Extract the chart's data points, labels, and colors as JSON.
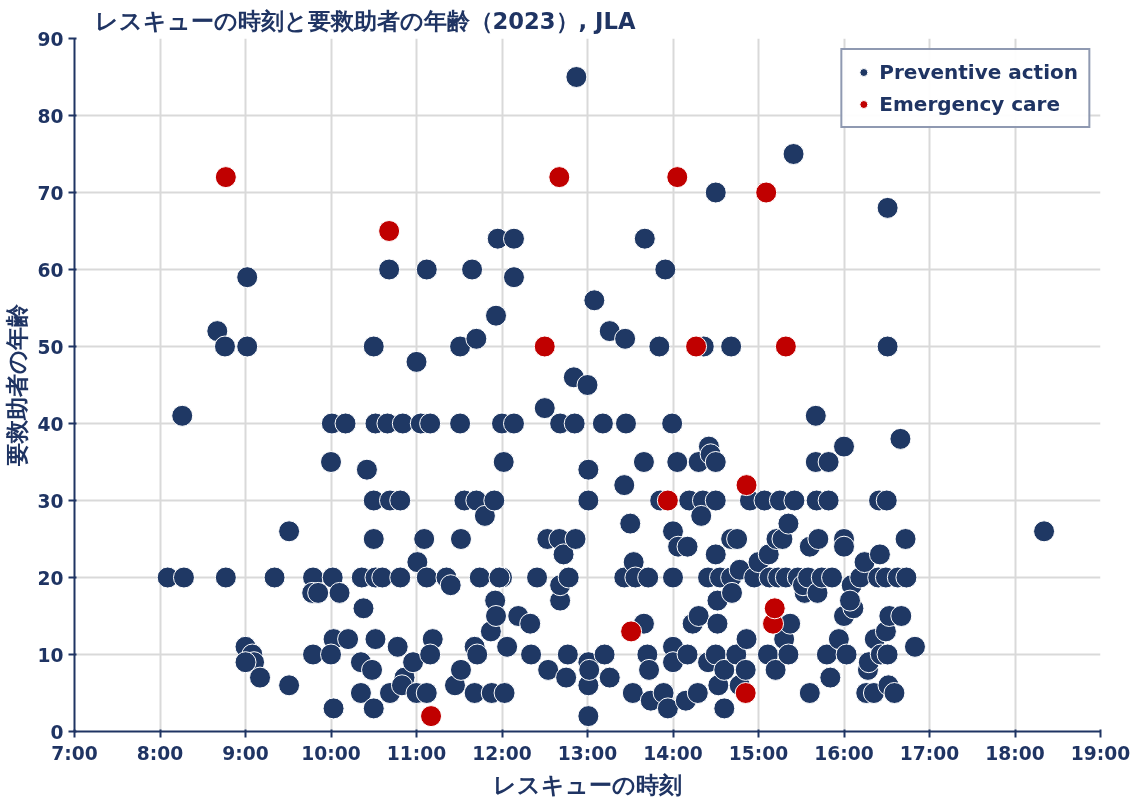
{
  "chart_data": {
    "type": "scatter",
    "title": "レスキューの時刻と要救助者の年齢（2023）, JLA",
    "xlabel": "レスキューの時刻",
    "ylabel": "要救助者の年齢",
    "xlim": [
      7,
      19
    ],
    "ylim": [
      0,
      90
    ],
    "xticks": [
      {
        "value": 7,
        "label": "7:00"
      },
      {
        "value": 8,
        "label": "8:00"
      },
      {
        "value": 9,
        "label": "9:00"
      },
      {
        "value": 10,
        "label": "10:00"
      },
      {
        "value": 11,
        "label": "11:00"
      },
      {
        "value": 12,
        "label": "12:00"
      },
      {
        "value": 13,
        "label": "13:00"
      },
      {
        "value": 14,
        "label": "14:00"
      },
      {
        "value": 15,
        "label": "15:00"
      },
      {
        "value": 16,
        "label": "16:00"
      },
      {
        "value": 17,
        "label": "17:00"
      },
      {
        "value": 18,
        "label": "18:00"
      },
      {
        "value": 19,
        "label": "19:00"
      }
    ],
    "yticks": [
      0,
      10,
      20,
      30,
      40,
      50,
      60,
      70,
      80,
      90
    ],
    "grid": true,
    "legend": "top right",
    "marker": "circle",
    "series": [
      {
        "name": "Preventive action",
        "color": "#1f3864",
        "x": [
          12.87,
          15.41,
          16.51,
          14.5,
          8.09,
          8.28,
          8.77,
          8.26,
          8.67,
          8.76,
          9.02,
          9.02,
          9.0,
          9.08,
          9.1,
          9.17,
          9.0,
          9.34,
          9.51,
          9.51,
          9.79,
          9.78,
          9.85,
          9.79,
          10.01,
          10.0,
          10.02,
          10.1,
          10.03,
          10.0,
          10.03,
          10.17,
          10.2,
          10.36,
          10.38,
          10.35,
          10.35,
          10.42,
          10.5,
          10.52,
          10.5,
          10.5,
          10.52,
          10.52,
          10.5,
          10.48,
          10.66,
          10.68,
          10.69,
          10.6,
          10.69,
          10.78,
          10.84,
          10.81,
          10.81,
          10.86,
          10.83,
          11.0,
          11.01,
          11.09,
          11.05,
          10.96,
          11.0,
          11.12,
          11.16,
          11.12,
          11.19,
          11.16,
          11.12,
          11.35,
          11.4,
          11.45,
          11.51,
          11.51,
          11.52,
          11.52,
          11.56,
          11.65,
          11.7,
          11.7,
          11.68,
          11.74,
          11.71,
          11.68,
          11.8,
          11.87,
          11.91,
          11.93,
          11.92,
          11.93,
          11.88,
          11.95,
          12.0,
          12.02,
          12.0,
          12.06,
          12.03,
          11.97,
          12.14,
          12.14,
          12.14,
          12.19,
          12.33,
          12.41,
          12.34,
          12.5,
          12.53,
          12.54,
          12.67,
          12.68,
          12.68,
          12.72,
          12.68,
          12.78,
          12.77,
          12.75,
          12.84,
          12.85,
          12.86,
          13.0,
          13.01,
          13.01,
          13.01,
          13.01,
          13.01,
          13.02,
          13.08,
          13.2,
          13.18,
          13.26,
          13.26,
          13.44,
          13.45,
          13.43,
          13.43,
          13.5,
          13.54,
          13.56,
          13.53,
          13.66,
          13.66,
          13.67,
          13.7,
          13.72,
          13.74,
          13.71,
          13.84,
          13.85,
          13.89,
          13.91,
          13.94,
          13.99,
          14.0,
          14.0,
          14.0,
          14.0,
          14.05,
          14.06,
          14.15,
          14.19,
          14.17,
          14.17,
          14.23,
          14.29,
          14.3,
          14.3,
          14.35,
          14.33,
          14.36,
          14.41,
          14.41,
          14.42,
          14.44,
          14.5,
          14.5,
          14.5,
          14.52,
          14.52,
          14.5,
          14.53,
          14.55,
          14.6,
          14.6,
          14.68,
          14.68,
          14.68,
          14.69,
          14.74,
          14.75,
          14.78,
          14.78,
          14.86,
          14.85,
          14.9,
          14.95,
          15.0,
          15.07,
          15.11,
          15.12,
          15.13,
          15.2,
          15.21,
          15.23,
          15.25,
          15.28,
          15.3,
          15.35,
          15.37,
          15.35,
          15.32,
          15.42,
          15.46,
          15.54,
          15.52,
          15.58,
          15.6,
          15.6,
          15.67,
          15.67,
          15.68,
          15.7,
          15.69,
          15.74,
          15.8,
          15.82,
          15.82,
          15.84,
          15.86,
          15.94,
          16.0,
          16.0,
          16.0,
          16.0,
          16.03,
          16.09,
          16.11,
          16.07,
          16.19,
          16.24,
          16.26,
          16.28,
          16.29,
          16.35,
          16.36,
          16.4,
          16.42,
          16.41,
          16.43,
          16.51,
          16.5,
          16.49,
          16.51,
          16.52,
          16.59,
          16.53,
          16.49,
          16.63,
          16.66,
          16.67,
          16.72,
          16.73,
          16.83,
          18.34
        ],
        "values": [
          85,
          75,
          68,
          70,
          20,
          20,
          20,
          41,
          52,
          50,
          50,
          59,
          11,
          10,
          9,
          7,
          9,
          20,
          26,
          6,
          20,
          18,
          18,
          10,
          40,
          35,
          20,
          18,
          12,
          10,
          3,
          40,
          12,
          20,
          16,
          9,
          5,
          34,
          50,
          40,
          30,
          25,
          20,
          12,
          3,
          8,
          40,
          60,
          30,
          20,
          5,
          11,
          40,
          30,
          20,
          7,
          6,
          48,
          22,
          25,
          40,
          9,
          5,
          60,
          40,
          20,
          12,
          10,
          5,
          20,
          19,
          6,
          40,
          50,
          25,
          8,
          30,
          60,
          51,
          30,
          11,
          20,
          10,
          5,
          28,
          13,
          30,
          54,
          17,
          15,
          5,
          64,
          40,
          35,
          20,
          11,
          5,
          20,
          64,
          59,
          40,
          15,
          14,
          20,
          10,
          42,
          25,
          8,
          25,
          17,
          19,
          23,
          40,
          20,
          10,
          7,
          46,
          40,
          25,
          45,
          34,
          30,
          9,
          6,
          2,
          8,
          56,
          10,
          40,
          7,
          52,
          51,
          40,
          32,
          20,
          27,
          22,
          20,
          5,
          14,
          35,
          64,
          10,
          8,
          4,
          20,
          50,
          30,
          5,
          60,
          3,
          40,
          26,
          20,
          11,
          9,
          35,
          24,
          4,
          30,
          24,
          10,
          14,
          5,
          15,
          35,
          30,
          28,
          50,
          20,
          9,
          37,
          36,
          35,
          30,
          23,
          17,
          14,
          10,
          6,
          20,
          8,
          3,
          50,
          20,
          25,
          18,
          10,
          25,
          21,
          6,
          12,
          8,
          30,
          20,
          22,
          30,
          10,
          23,
          20,
          8,
          25,
          20,
          30,
          25,
          12,
          27,
          14,
          10,
          20,
          30,
          20,
          18,
          19,
          20,
          24,
          5,
          41,
          35,
          30,
          25,
          18,
          20,
          10,
          35,
          30,
          7,
          20,
          12,
          37,
          25,
          24,
          15,
          10,
          19,
          16,
          17,
          20,
          22,
          5,
          8,
          9,
          5,
          12,
          20,
          23,
          30,
          10,
          50,
          30,
          13,
          10,
          6,
          5,
          15,
          20,
          20,
          38,
          15,
          25,
          20,
          11,
          26
        ]
      },
      {
        "name": "Emergency care",
        "color": "#c00000",
        "x": [
          8.77,
          10.68,
          11.17,
          12.5,
          12.67,
          13.51,
          14.05,
          13.94,
          14.27,
          14.86,
          14.85,
          15.09,
          15.17,
          15.19,
          15.32
        ],
        "values": [
          72,
          65,
          2,
          50,
          72,
          13,
          72,
          30,
          50,
          32,
          5,
          70,
          14,
          16,
          50
        ]
      }
    ]
  }
}
